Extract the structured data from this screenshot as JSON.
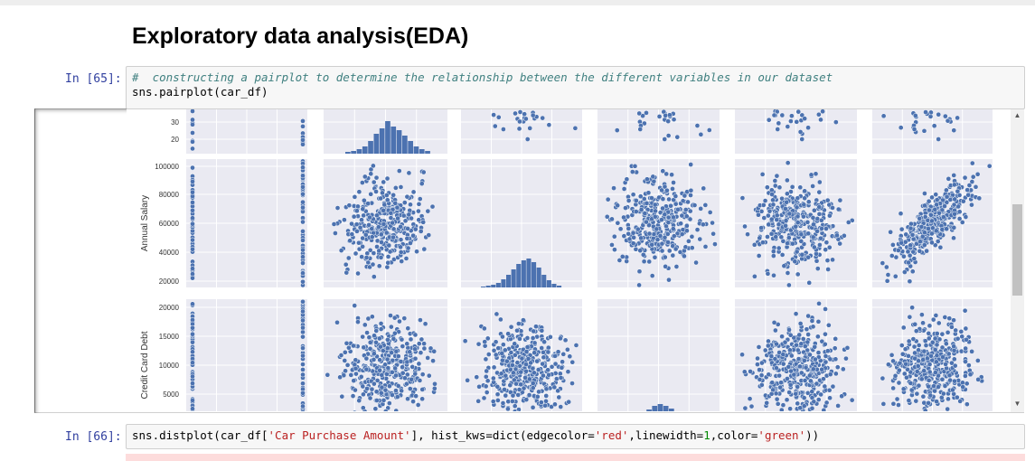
{
  "heading": "Exploratory data analysis(EDA)",
  "cells": [
    {
      "prompt": "In [65]:",
      "comment": "#  constructing a pairplot to determine the relationship between the different variables in our dataset",
      "code": "sns.pairplot(car_df)"
    },
    {
      "prompt": "In [66]:",
      "code_a": "sns.distplot(car_df[",
      "str1": "'Car Purchase Amount'",
      "code_b": "], hist_kws=dict(edgecolor=",
      "str2": "'red'",
      "code_c": ",linewidth=",
      "num1": "1",
      "code_d": ",color=",
      "str3": "'green'",
      "code_e": "))"
    }
  ],
  "chart_data": {
    "type": "scatter",
    "title": "",
    "ylabels": [
      "Annual Salary",
      "Credit Card Debt"
    ],
    "rows": [
      {
        "ylabel": "",
        "yticks": [
          20,
          30
        ]
      },
      {
        "ylabel": "Annual Salary",
        "yticks": [
          20000,
          40000,
          60000,
          80000,
          100000
        ]
      },
      {
        "ylabel": "Credit Card Debt",
        "yticks": [
          5000,
          10000,
          15000,
          20000
        ]
      }
    ],
    "ytick_labels": {
      "row0": [
        "30",
        "20"
      ],
      "row1": [
        "100000",
        "80000",
        "60000",
        "40000",
        "20000"
      ],
      "row2": [
        "20000",
        "15000",
        "10000",
        "5000"
      ]
    },
    "columns": 6,
    "marker_color": "#4c72b0",
    "panel_bg": "#eaeaf2"
  },
  "colors": {
    "prompt": "#303F9F",
    "comment": "#408080",
    "string": "#BA2121",
    "number": "#008800"
  },
  "icons": {
    "scroll_up": "▲",
    "scroll_down": "▼"
  }
}
